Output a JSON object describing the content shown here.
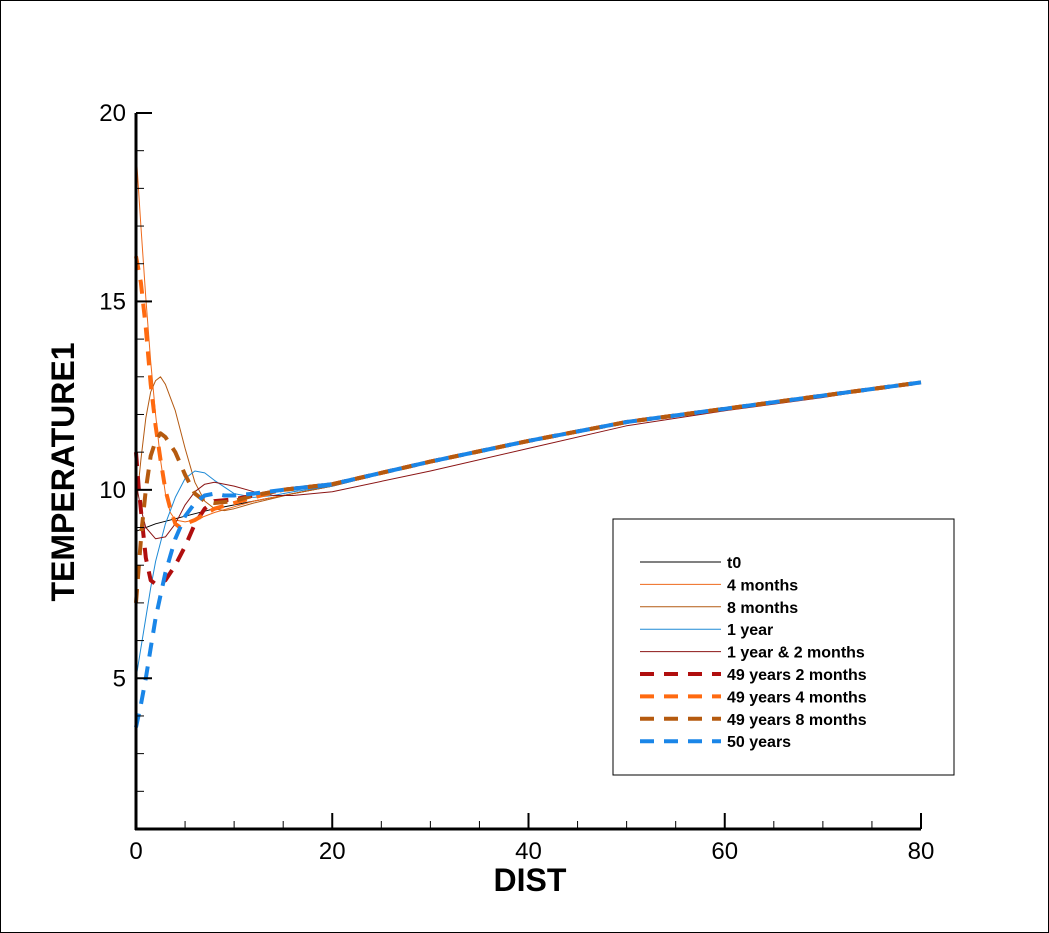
{
  "chart_data": {
    "type": "line",
    "title": "",
    "xlabel": "DIST",
    "ylabel": "TEMPERATURE1",
    "xlim": [
      0,
      80
    ],
    "ylim": [
      1,
      20
    ],
    "x_ticks": [
      0,
      20,
      40,
      60,
      80
    ],
    "y_ticks": [
      5,
      10,
      15,
      20
    ],
    "grid": false,
    "legend_position": "right",
    "series": [
      {
        "name": "t0",
        "color": "#000000",
        "dash": "solid",
        "width": "thin",
        "points": [
          [
            0,
            8.9
          ],
          [
            2,
            9.1
          ],
          [
            5,
            9.3
          ],
          [
            8,
            9.5
          ],
          [
            12,
            9.7
          ],
          [
            16,
            9.9
          ],
          [
            20,
            10.1
          ],
          [
            30,
            10.75
          ],
          [
            40,
            11.3
          ],
          [
            50,
            11.8
          ],
          [
            60,
            12.15
          ],
          [
            70,
            12.5
          ],
          [
            80,
            12.85
          ]
        ]
      },
      {
        "name": "4 months",
        "color": "#ee6a1c",
        "dash": "solid",
        "width": "thin",
        "points": [
          [
            0,
            19.0
          ],
          [
            0.5,
            17.0
          ],
          [
            1,
            15.1
          ],
          [
            1.5,
            13.4
          ],
          [
            2,
            12.0
          ],
          [
            2.5,
            10.8
          ],
          [
            3,
            9.9
          ],
          [
            3.5,
            9.4
          ],
          [
            4,
            9.2
          ],
          [
            5,
            9.15
          ],
          [
            6,
            9.2
          ],
          [
            8,
            9.4
          ],
          [
            10,
            9.55
          ],
          [
            12,
            9.7
          ],
          [
            16,
            9.9
          ],
          [
            20,
            10.1
          ],
          [
            30,
            10.75
          ],
          [
            40,
            11.3
          ],
          [
            50,
            11.8
          ],
          [
            60,
            12.15
          ],
          [
            70,
            12.5
          ],
          [
            80,
            12.85
          ]
        ]
      },
      {
        "name": "8 months",
        "color": "#b45a12",
        "dash": "solid",
        "width": "thin",
        "points": [
          [
            0,
            9.5
          ],
          [
            0.5,
            10.8
          ],
          [
            1,
            11.9
          ],
          [
            1.5,
            12.6
          ],
          [
            2,
            12.9
          ],
          [
            2.5,
            13.0
          ],
          [
            3,
            12.8
          ],
          [
            4,
            12.1
          ],
          [
            5,
            11.1
          ],
          [
            6,
            10.2
          ],
          [
            7,
            9.7
          ],
          [
            8,
            9.5
          ],
          [
            9,
            9.45
          ],
          [
            10,
            9.5
          ],
          [
            12,
            9.65
          ],
          [
            16,
            9.9
          ],
          [
            20,
            10.1
          ],
          [
            30,
            10.75
          ],
          [
            40,
            11.3
          ],
          [
            50,
            11.8
          ],
          [
            60,
            12.15
          ],
          [
            70,
            12.5
          ],
          [
            80,
            12.85
          ]
        ]
      },
      {
        "name": "1 year",
        "color": "#1e8ad6",
        "dash": "solid",
        "width": "thin",
        "points": [
          [
            0,
            5.0
          ],
          [
            0.5,
            5.8
          ],
          [
            1,
            6.6
          ],
          [
            1.5,
            7.4
          ],
          [
            2,
            8.1
          ],
          [
            3,
            9.1
          ],
          [
            4,
            9.8
          ],
          [
            5,
            10.3
          ],
          [
            6,
            10.5
          ],
          [
            7,
            10.45
          ],
          [
            8,
            10.25
          ],
          [
            10,
            9.9
          ],
          [
            12,
            9.8
          ],
          [
            14,
            9.85
          ],
          [
            16,
            9.95
          ],
          [
            20,
            10.1
          ],
          [
            30,
            10.75
          ],
          [
            40,
            11.3
          ],
          [
            50,
            11.8
          ],
          [
            60,
            12.15
          ],
          [
            70,
            12.5
          ],
          [
            80,
            12.85
          ]
        ]
      },
      {
        "name": "1 year & 2 months",
        "color": "#8b1515",
        "dash": "solid",
        "width": "thin",
        "points": [
          [
            0,
            10.2
          ],
          [
            0.5,
            9.5
          ],
          [
            1,
            9.0
          ],
          [
            2,
            8.7
          ],
          [
            3,
            8.75
          ],
          [
            4,
            9.1
          ],
          [
            5,
            9.6
          ],
          [
            6,
            9.95
          ],
          [
            7,
            10.15
          ],
          [
            8,
            10.2
          ],
          [
            10,
            10.1
          ],
          [
            12,
            9.95
          ],
          [
            14,
            9.85
          ],
          [
            16,
            9.85
          ],
          [
            20,
            9.95
          ],
          [
            30,
            10.5
          ],
          [
            40,
            11.1
          ],
          [
            50,
            11.7
          ],
          [
            60,
            12.1
          ],
          [
            70,
            12.45
          ],
          [
            80,
            12.85
          ]
        ]
      },
      {
        "name": "49 years 2 months",
        "color": "#b00e0e",
        "dash": "dashed",
        "width": "thick",
        "points": [
          [
            0,
            11.0
          ],
          [
            0.3,
            10.0
          ],
          [
            0.6,
            9.2
          ],
          [
            1,
            8.2
          ],
          [
            1.5,
            7.6
          ],
          [
            2,
            7.5
          ],
          [
            3,
            7.6
          ],
          [
            4,
            8.0
          ],
          [
            5,
            8.5
          ],
          [
            6,
            9.1
          ],
          [
            7,
            9.5
          ],
          [
            8,
            9.7
          ],
          [
            10,
            9.75
          ],
          [
            12,
            9.85
          ],
          [
            15,
            10.0
          ],
          [
            20,
            10.15
          ],
          [
            30,
            10.75
          ],
          [
            40,
            11.3
          ],
          [
            50,
            11.8
          ],
          [
            60,
            12.15
          ],
          [
            70,
            12.5
          ],
          [
            80,
            12.85
          ]
        ]
      },
      {
        "name": "49 years 4 months",
        "color": "#ff6a10",
        "dash": "dashed",
        "width": "thick",
        "points": [
          [
            0,
            16.2
          ],
          [
            0.5,
            15.5
          ],
          [
            1,
            14.3
          ],
          [
            1.5,
            12.8
          ],
          [
            2,
            11.7
          ],
          [
            2.5,
            10.8
          ],
          [
            3,
            10.0
          ],
          [
            3.5,
            9.5
          ],
          [
            4,
            9.1
          ],
          [
            4.5,
            9.0
          ],
          [
            5,
            9.1
          ],
          [
            6,
            9.2
          ],
          [
            7,
            9.35
          ],
          [
            8,
            9.5
          ],
          [
            10,
            9.65
          ],
          [
            12,
            9.8
          ],
          [
            15,
            10.0
          ],
          [
            20,
            10.15
          ],
          [
            30,
            10.75
          ],
          [
            40,
            11.3
          ],
          [
            50,
            11.8
          ],
          [
            60,
            12.15
          ],
          [
            70,
            12.5
          ],
          [
            80,
            12.85
          ]
        ]
      },
      {
        "name": "49 years 8 months",
        "color": "#b55a0f",
        "dash": "dashed",
        "width": "thick",
        "points": [
          [
            0,
            7.0
          ],
          [
            0.3,
            8.0
          ],
          [
            0.6,
            9.0
          ],
          [
            1,
            10.0
          ],
          [
            1.5,
            10.9
          ],
          [
            2,
            11.3
          ],
          [
            2.5,
            11.5
          ],
          [
            3,
            11.4
          ],
          [
            4,
            11.0
          ],
          [
            5,
            10.4
          ],
          [
            6,
            9.9
          ],
          [
            7,
            9.7
          ],
          [
            8,
            9.65
          ],
          [
            10,
            9.7
          ],
          [
            12,
            9.85
          ],
          [
            15,
            10.0
          ],
          [
            20,
            10.15
          ],
          [
            30,
            10.75
          ],
          [
            40,
            11.3
          ],
          [
            50,
            11.8
          ],
          [
            60,
            12.15
          ],
          [
            70,
            12.5
          ],
          [
            80,
            12.85
          ]
        ]
      },
      {
        "name": "50 years",
        "color": "#1a86e8",
        "dash": "dashed",
        "width": "thick",
        "points": [
          [
            0,
            3.7
          ],
          [
            0.5,
            4.3
          ],
          [
            1,
            5.0
          ],
          [
            1.5,
            5.8
          ],
          [
            2,
            6.6
          ],
          [
            3,
            7.8
          ],
          [
            4,
            8.7
          ],
          [
            5,
            9.3
          ],
          [
            6,
            9.65
          ],
          [
            7,
            9.85
          ],
          [
            8,
            9.9
          ],
          [
            9,
            9.85
          ],
          [
            10,
            9.85
          ],
          [
            12,
            9.9
          ],
          [
            15,
            10.0
          ],
          [
            20,
            10.15
          ],
          [
            30,
            10.75
          ],
          [
            40,
            11.3
          ],
          [
            50,
            11.8
          ],
          [
            60,
            12.15
          ],
          [
            70,
            12.5
          ],
          [
            80,
            12.85
          ]
        ]
      }
    ]
  }
}
